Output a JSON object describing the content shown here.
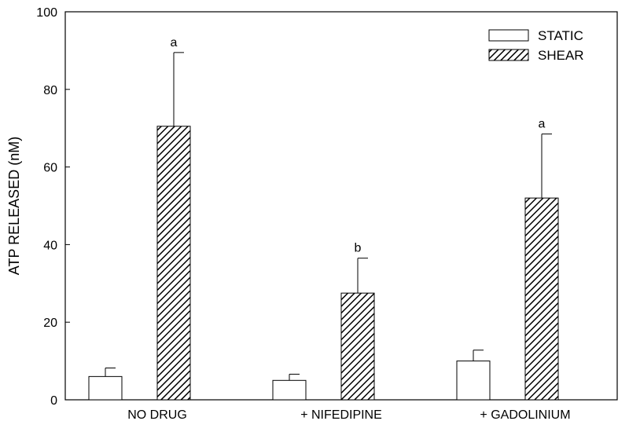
{
  "chart_data": {
    "type": "bar",
    "title": "",
    "xlabel": "",
    "ylabel": "ATP RELEASED (nM)",
    "ylim": [
      0,
      100
    ],
    "yticks": [
      0,
      20,
      40,
      60,
      80,
      100
    ],
    "categories": [
      "NO DRUG",
      "+ NIFEDIPINE",
      "+ GADOLINIUM"
    ],
    "series": [
      {
        "name": "STATIC",
        "values": [
          6,
          5,
          10
        ],
        "errors": [
          2.2,
          1.6,
          2.8
        ],
        "fill": "#ffffff",
        "pattern": "none"
      },
      {
        "name": "SHEAR",
        "values": [
          70.5,
          27.5,
          52
        ],
        "errors": [
          19,
          9,
          16.5
        ],
        "fill": "#ffffff",
        "pattern": "diagonal-hatch"
      }
    ],
    "annotations": [
      {
        "category": "NO DRUG",
        "series": "SHEAR",
        "text": "a"
      },
      {
        "category": "+ NIFEDIPINE",
        "series": "SHEAR",
        "text": "b"
      },
      {
        "category": "+ GADOLINIUM",
        "series": "SHEAR",
        "text": "a"
      }
    ],
    "legend_position": "top-right",
    "grid": false,
    "colors": {
      "stroke": "#000000",
      "background": "#ffffff"
    }
  }
}
